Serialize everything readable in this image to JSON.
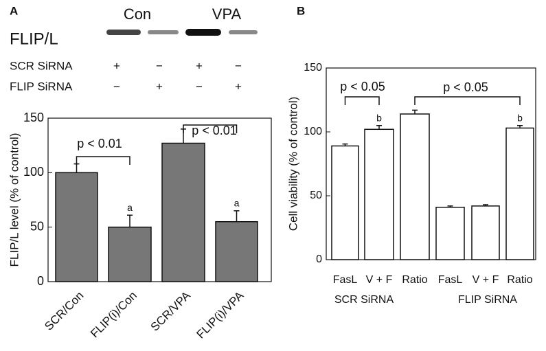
{
  "panel_labels": [
    "A",
    "B"
  ],
  "blot": {
    "columns": [
      "Con",
      "VPA"
    ],
    "protein": "FLIP/L",
    "rows": [
      {
        "name": "SCR SiRNA",
        "signs": [
          "+",
          "−",
          "+",
          "−"
        ]
      },
      {
        "name": "FLIP SiRNA",
        "signs": [
          "−",
          "+",
          "−",
          "+"
        ]
      }
    ]
  },
  "chart_data": [
    {
      "type": "bar",
      "y_label": "FLIP/L level (% of control)",
      "categories": [
        "SCR/Con",
        "FLIP(i)/Con",
        "SCR/VPA",
        "FLIP(i)/VPA"
      ],
      "values": [
        100,
        50,
        127,
        55
      ],
      "errors": [
        8,
        11,
        13,
        10
      ],
      "bar_labels": [
        null,
        "a",
        null,
        "a"
      ],
      "color": "#777777",
      "ylim": [
        0,
        150
      ],
      "yticks": [
        0,
        50,
        100,
        150
      ],
      "annotations": [
        "p < 0.01",
        "p < 0.01"
      ]
    },
    {
      "type": "bar",
      "y_label": "Cell viability (% of control)",
      "categories": [
        "FasL",
        "V + F",
        "Ratio",
        "FasL",
        "V + F",
        "Ratio"
      ],
      "groups": [
        "SCR SiRNA",
        "FLIP SiRNA"
      ],
      "values": [
        89,
        102,
        114,
        41,
        42,
        103
      ],
      "errors": [
        1.5,
        3,
        3,
        1,
        1,
        2
      ],
      "bar_labels": [
        null,
        "b",
        null,
        null,
        null,
        "b"
      ],
      "color": "#ffffff",
      "ylim": [
        0,
        150
      ],
      "yticks": [
        0,
        50,
        100,
        150
      ],
      "annotations": [
        "p < 0.05",
        "p < 0.05"
      ]
    }
  ]
}
